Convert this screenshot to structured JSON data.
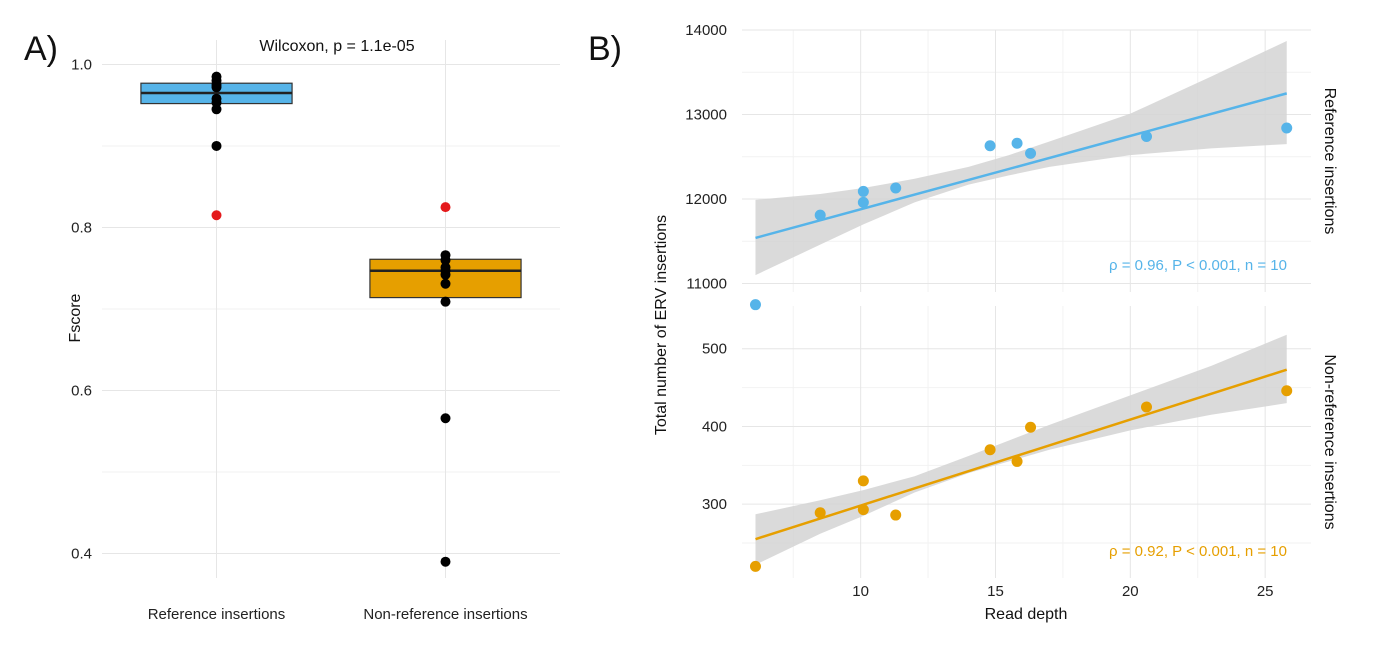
{
  "panel_labels": {
    "a": "A)",
    "b": "B)"
  },
  "colors": {
    "reference": "#56b4e9",
    "non_reference": "#e69f00",
    "outlier": "#e41a1c",
    "point": "#000000",
    "ribbon": "#d3d3d3"
  },
  "chart_data": [
    {
      "type": "box",
      "panel": "A)",
      "title": "Wilcoxon, p = 1.1e-05",
      "xlabel": "",
      "ylabel": "Fscore",
      "ylim": [
        0.37,
        1.03
      ],
      "y_ticks": [
        "0.4",
        "0.6",
        "0.8",
        "1.0"
      ],
      "grid": true,
      "categories": [
        "Reference insertions",
        "Non-reference insertions"
      ],
      "boxes": [
        {
          "category": "Reference insertions",
          "q1": 0.952,
          "median": 0.965,
          "q3": 0.977
        },
        {
          "category": "Non-reference insertions",
          "q1": 0.714,
          "median": 0.747,
          "q3": 0.761
        }
      ],
      "points": [
        {
          "category": "Reference insertions",
          "values": [
            0.985,
            0.98,
            0.975,
            0.972,
            0.958,
            0.953,
            0.945,
            0.9
          ]
        },
        {
          "category": "Non-reference insertions",
          "values": [
            0.766,
            0.76,
            0.751,
            0.747,
            0.742,
            0.731,
            0.709,
            0.566,
            0.39
          ]
        }
      ],
      "outliers": [
        {
          "category": "Reference insertions",
          "value": 0.815
        },
        {
          "category": "Non-reference insertions",
          "value": 0.825
        }
      ]
    },
    {
      "type": "scatter",
      "panel": "B)",
      "xlabel": "Read depth",
      "ylabel": "Total number of ERV insertions",
      "xlim": [
        5.6,
        26.7
      ],
      "x_ticks": [
        "10",
        "15",
        "20",
        "25"
      ],
      "grid": true,
      "facets": [
        {
          "strip": "Reference insertions",
          "ylim": [
            10900,
            14000
          ],
          "y_ticks": [
            "11000",
            "12000",
            "13000",
            "14000"
          ],
          "x": [
            6.1,
            8.5,
            10.1,
            10.1,
            11.3,
            14.8,
            15.8,
            16.3,
            20.6,
            25.8
          ],
          "y": [
            10750,
            11810,
            11960,
            12090,
            12130,
            12630,
            12660,
            12540,
            12740,
            12840
          ],
          "fit": {
            "x": [
              6.1,
              25.8
            ],
            "y": [
              11540,
              13250
            ]
          },
          "ribbon": {
            "x": [
              6.1,
              8.5,
              10.1,
              12.0,
              14.0,
              15.5,
              17.0,
              20.0,
              23.0,
              25.8
            ],
            "lower": [
              11100,
              11460,
              11700,
              11960,
              12170,
              12280,
              12380,
              12520,
              12600,
              12650
            ],
            "upper": [
              11990,
              12060,
              12130,
              12240,
              12380,
              12520,
              12680,
              13010,
              13450,
              13870
            ]
          },
          "annotation": "ρ = 0.96, P < 0.001, n = 10"
        },
        {
          "strip": "Non-reference insertions",
          "ylim": [
            205,
            555
          ],
          "y_ticks": [
            "300",
            "400",
            "500"
          ],
          "x": [
            6.1,
            8.5,
            10.1,
            10.1,
            11.3,
            14.8,
            15.8,
            16.3,
            20.6,
            25.8
          ],
          "y": [
            220,
            289,
            293,
            330,
            286,
            370,
            355,
            399,
            425,
            446
          ],
          "fit": {
            "x": [
              6.1,
              25.8
            ],
            "y": [
              255,
              473
            ]
          },
          "ribbon": {
            "x": [
              6.1,
              8.5,
              10.1,
              12.0,
              14.0,
              15.5,
              17.0,
              20.0,
              23.0,
              25.8
            ],
            "lower": [
              222,
              262,
              285,
              315,
              340,
              355,
              370,
              395,
              415,
              430
            ],
            "upper": [
              287,
              305,
              318,
              336,
              362,
              382,
              402,
              440,
              478,
              518
            ]
          },
          "annotation": "ρ = 0.92, P < 0.001, n = 10"
        }
      ]
    }
  ]
}
